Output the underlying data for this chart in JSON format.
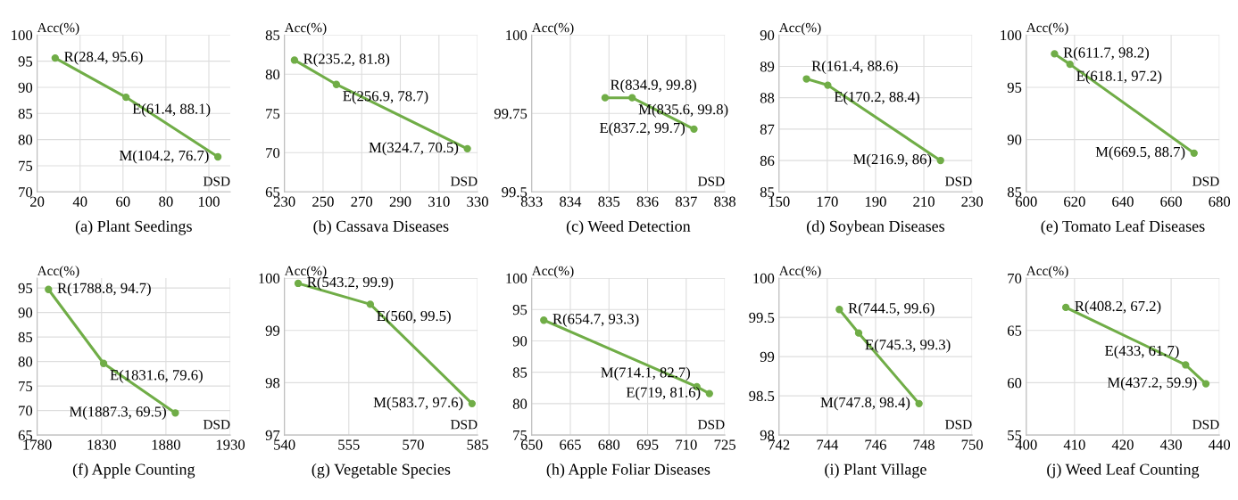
{
  "chart_data": [
    {
      "type": "line",
      "title": "(a) Plant Seedings",
      "xlabel": "DSD",
      "ylabel": "Acc(%)",
      "x": [
        28.4,
        61.4,
        104.2
      ],
      "series": [
        {
          "color": "#70ad47",
          "values": [
            95.6,
            88.1,
            76.7
          ]
        }
      ],
      "xlim": [
        20,
        110
      ],
      "xticks": [
        20,
        40,
        60,
        80,
        100
      ],
      "ylim": [
        70,
        100
      ],
      "yticks": [
        70,
        75,
        80,
        85,
        90,
        95,
        100
      ],
      "grid": true,
      "marker": "circle",
      "line_style": "solid",
      "annotations": [
        {
          "text": "R(28.4, 95.6)",
          "x": 28.4,
          "y": 95.6
        },
        {
          "text": "E(61.4, 88.1)",
          "x": 61.4,
          "y": 88.1
        },
        {
          "text": "M(104.2, 76.7)",
          "x": 104.2,
          "y": 76.7
        }
      ]
    },
    {
      "type": "line",
      "title": "(b) Cassava Diseases",
      "xlabel": "DSD",
      "ylabel": "Acc(%)",
      "x": [
        235.2,
        256.9,
        324.7
      ],
      "series": [
        {
          "color": "#70ad47",
          "values": [
            81.8,
            78.7,
            70.5
          ]
        }
      ],
      "xlim": [
        230,
        330
      ],
      "xticks": [
        230,
        250,
        270,
        290,
        310,
        330
      ],
      "ylim": [
        65,
        85
      ],
      "yticks": [
        65,
        70,
        75,
        80,
        85
      ],
      "grid": true,
      "marker": "circle",
      "line_style": "solid",
      "annotations": [
        {
          "text": "R(235.2, 81.8)",
          "x": 235.2,
          "y": 81.8
        },
        {
          "text": "E(256.9, 78.7)",
          "x": 256.9,
          "y": 78.7
        },
        {
          "text": "M(324.7, 70.5)",
          "x": 324.7,
          "y": 70.5
        }
      ]
    },
    {
      "type": "line",
      "title": "(c) Weed Detection",
      "xlabel": "DSD",
      "ylabel": "Acc(%)",
      "x": [
        834.9,
        835.6,
        837.2
      ],
      "series": [
        {
          "color": "#70ad47",
          "values": [
            99.8,
            99.8,
            99.7
          ]
        }
      ],
      "xlim": [
        833,
        838
      ],
      "xticks": [
        833,
        834,
        835,
        836,
        837,
        838
      ],
      "ylim": [
        99.5,
        100
      ],
      "yticks": [
        99.5,
        99.75,
        100
      ],
      "grid": true,
      "marker": "circle",
      "line_style": "solid",
      "annotations": [
        {
          "text": "R(834.9, 99.8)",
          "x": 834.9,
          "y": 99.8
        },
        {
          "text": "M(835.6, 99.8)",
          "x": 835.6,
          "y": 99.8
        },
        {
          "text": "E(837.2, 99.7)",
          "x": 837.2,
          "y": 99.7
        }
      ]
    },
    {
      "type": "line",
      "title": "(d) Soybean Diseases",
      "xlabel": "DSD",
      "ylabel": "Acc(%)",
      "x": [
        161.4,
        170.2,
        216.9
      ],
      "series": [
        {
          "color": "#70ad47",
          "values": [
            88.6,
            88.4,
            86
          ]
        }
      ],
      "xlim": [
        150,
        230
      ],
      "xticks": [
        150,
        170,
        190,
        210,
        230
      ],
      "ylim": [
        85,
        90
      ],
      "yticks": [
        85,
        86,
        87,
        88,
        89,
        90
      ],
      "grid": true,
      "marker": "circle",
      "line_style": "solid",
      "annotations": [
        {
          "text": "R(161.4, 88.6)",
          "x": 161.4,
          "y": 88.6
        },
        {
          "text": "E(170.2, 88.4)",
          "x": 170.2,
          "y": 88.4
        },
        {
          "text": "M(216.9, 86)",
          "x": 216.9,
          "y": 86
        }
      ]
    },
    {
      "type": "line",
      "title": "(e) Tomato Leaf Diseases",
      "xlabel": "DSD",
      "ylabel": "Acc(%)",
      "x": [
        611.7,
        618.1,
        669.5
      ],
      "series": [
        {
          "color": "#70ad47",
          "values": [
            98.2,
            97.2,
            88.7
          ]
        }
      ],
      "xlim": [
        600,
        680
      ],
      "xticks": [
        600,
        620,
        640,
        660,
        680
      ],
      "ylim": [
        85,
        100
      ],
      "yticks": [
        85,
        90,
        95,
        100
      ],
      "grid": true,
      "marker": "circle",
      "line_style": "solid",
      "annotations": [
        {
          "text": "R(611.7, 98.2)",
          "x": 611.7,
          "y": 98.2
        },
        {
          "text": "E(618.1, 97.2)",
          "x": 618.1,
          "y": 97.2
        },
        {
          "text": "M(669.5, 88.7)",
          "x": 669.5,
          "y": 88.7
        }
      ]
    },
    {
      "type": "line",
      "title": "(f) Apple Counting",
      "xlabel": "DSD",
      "ylabel": "Acc(%)",
      "x": [
        1788.8,
        1831.6,
        1887.3
      ],
      "series": [
        {
          "color": "#70ad47",
          "values": [
            94.7,
            79.6,
            69.5
          ]
        }
      ],
      "xlim": [
        1780,
        1930
      ],
      "xticks": [
        1780,
        1830,
        1880,
        1930
      ],
      "ylim": [
        65,
        97
      ],
      "yticks": [
        65,
        70,
        75,
        80,
        85,
        90,
        95
      ],
      "grid": true,
      "marker": "circle",
      "line_style": "solid",
      "annotations": [
        {
          "text": "R(1788.8, 94.7)",
          "x": 1788.8,
          "y": 94.7
        },
        {
          "text": "E(1831.6, 79.6)",
          "x": 1831.6,
          "y": 79.6
        },
        {
          "text": "M(1887.3, 69.5)",
          "x": 1887.3,
          "y": 69.5
        }
      ]
    },
    {
      "type": "line",
      "title": "(g) Vegetable Species",
      "xlabel": "DSD",
      "ylabel": "Acc(%)",
      "x": [
        543.2,
        560,
        583.7
      ],
      "series": [
        {
          "color": "#70ad47",
          "values": [
            99.9,
            99.5,
            97.6
          ]
        }
      ],
      "xlim": [
        540,
        585
      ],
      "xticks": [
        540,
        555,
        570,
        585
      ],
      "ylim": [
        97,
        100
      ],
      "yticks": [
        97,
        98,
        99,
        100
      ],
      "grid": true,
      "marker": "circle",
      "line_style": "solid",
      "annotations": [
        {
          "text": "R(543.2, 99.9)",
          "x": 543.2,
          "y": 99.9
        },
        {
          "text": "E(560, 99.5)",
          "x": 560,
          "y": 99.5
        },
        {
          "text": "M(583.7, 97.6)",
          "x": 583.7,
          "y": 97.6
        }
      ]
    },
    {
      "type": "line",
      "title": "(h) Apple Foliar Diseases",
      "xlabel": "DSD",
      "ylabel": "Acc(%)",
      "x": [
        654.7,
        714.1,
        719
      ],
      "series": [
        {
          "color": "#70ad47",
          "values": [
            93.3,
            82.7,
            81.6
          ]
        }
      ],
      "xlim": [
        650,
        725
      ],
      "xticks": [
        650,
        665,
        680,
        695,
        710,
        725
      ],
      "ylim": [
        75,
        100
      ],
      "yticks": [
        75,
        80,
        85,
        90,
        95,
        100
      ],
      "grid": true,
      "marker": "circle",
      "line_style": "solid",
      "annotations": [
        {
          "text": "R(654.7, 93.3)",
          "x": 654.7,
          "y": 93.3
        },
        {
          "text": "M(714.1, 82.7)",
          "x": 714.1,
          "y": 82.7
        },
        {
          "text": "E(719, 81.6)",
          "x": 719,
          "y": 81.6
        }
      ]
    },
    {
      "type": "line",
      "title": "(i) Plant Village",
      "xlabel": "DSD",
      "ylabel": "Acc(%)",
      "x": [
        744.5,
        745.3,
        747.8
      ],
      "series": [
        {
          "color": "#70ad47",
          "values": [
            99.6,
            99.3,
            98.4
          ]
        }
      ],
      "xlim": [
        742,
        750
      ],
      "xticks": [
        742,
        744,
        746,
        748,
        750
      ],
      "ylim": [
        98,
        100
      ],
      "yticks": [
        98,
        98.5,
        99,
        99.5,
        100
      ],
      "grid": true,
      "marker": "circle",
      "line_style": "solid",
      "annotations": [
        {
          "text": "R(744.5, 99.6)",
          "x": 744.5,
          "y": 99.6
        },
        {
          "text": "E(745.3, 99.3)",
          "x": 745.3,
          "y": 99.3
        },
        {
          "text": "M(747.8, 98.4)",
          "x": 747.8,
          "y": 98.4
        }
      ]
    },
    {
      "type": "line",
      "title": "(j) Weed Leaf Counting",
      "xlabel": "DSD",
      "ylabel": "Acc(%)",
      "x": [
        408.2,
        433,
        437.2
      ],
      "series": [
        {
          "color": "#70ad47",
          "values": [
            67.2,
            61.7,
            59.9
          ]
        }
      ],
      "xlim": [
        400,
        440
      ],
      "xticks": [
        400,
        410,
        420,
        430,
        440
      ],
      "ylim": [
        55,
        70
      ],
      "yticks": [
        55,
        60,
        65,
        70
      ],
      "grid": true,
      "marker": "circle",
      "line_style": "solid",
      "annotations": [
        {
          "text": "R(408.2, 67.2)",
          "x": 408.2,
          "y": 67.2
        },
        {
          "text": "E(433, 61.7)",
          "x": 433,
          "y": 61.7
        },
        {
          "text": "M(437.2, 59.9)",
          "x": 437.2,
          "y": 59.9
        }
      ]
    }
  ]
}
